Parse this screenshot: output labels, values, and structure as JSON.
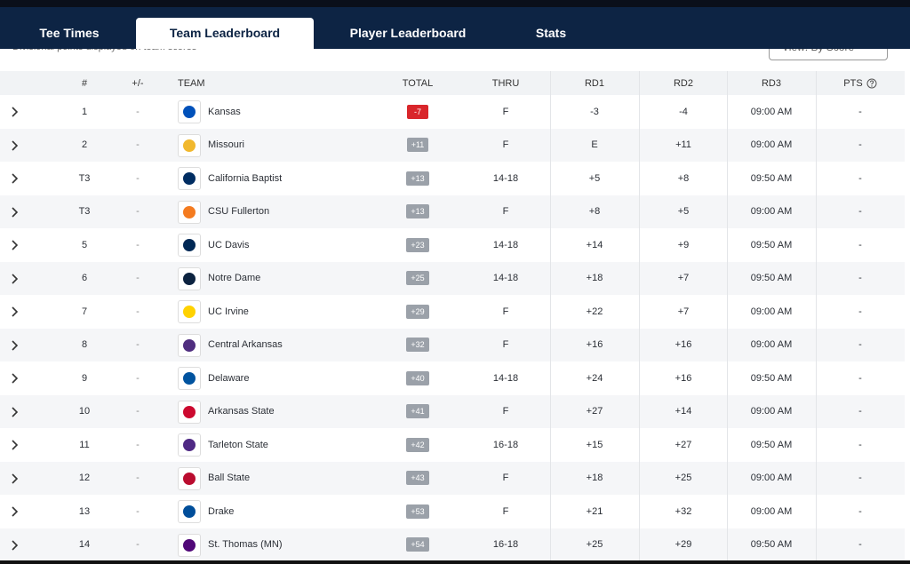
{
  "tabs": [
    "Tee Times",
    "Team Leaderboard",
    "Player Leaderboard",
    "Stats"
  ],
  "active_tab": 1,
  "note": "Divisional points displayed on team scores",
  "view_select": "View: By Score",
  "table": {
    "columns": [
      "#",
      "+/-",
      "TEAM",
      "TOTAL",
      "THRU",
      "RD1",
      "RD2",
      "RD3",
      "PTS"
    ],
    "rows": [
      [
        "1",
        "-",
        "Kansas",
        "-7",
        "F",
        "-3",
        "-4",
        "09:00 AM",
        "-"
      ],
      [
        "2",
        "-",
        "Missouri",
        "+11",
        "F",
        "E",
        "+11",
        "09:00 AM",
        "-"
      ],
      [
        "T3",
        "-",
        "California Baptist",
        "+13",
        "14-18",
        "+5",
        "+8",
        "09:50 AM",
        "-"
      ],
      [
        "T3",
        "-",
        "CSU Fullerton",
        "+13",
        "F",
        "+8",
        "+5",
        "09:00 AM",
        "-"
      ],
      [
        "5",
        "-",
        "UC Davis",
        "+23",
        "14-18",
        "+14",
        "+9",
        "09:50 AM",
        "-"
      ],
      [
        "6",
        "-",
        "Notre Dame",
        "+25",
        "14-18",
        "+18",
        "+7",
        "09:50 AM",
        "-"
      ],
      [
        "7",
        "-",
        "UC Irvine",
        "+29",
        "F",
        "+22",
        "+7",
        "09:00 AM",
        "-"
      ],
      [
        "8",
        "-",
        "Central Arkansas",
        "+32",
        "F",
        "+16",
        "+16",
        "09:00 AM",
        "-"
      ],
      [
        "9",
        "-",
        "Delaware",
        "+40",
        "14-18",
        "+24",
        "+16",
        "09:50 AM",
        "-"
      ],
      [
        "10",
        "-",
        "Arkansas State",
        "+41",
        "F",
        "+27",
        "+14",
        "09:00 AM",
        "-"
      ],
      [
        "11",
        "-",
        "Tarleton State",
        "+42",
        "16-18",
        "+15",
        "+27",
        "09:50 AM",
        "-"
      ],
      [
        "12",
        "-",
        "Ball State",
        "+43",
        "F",
        "+18",
        "+25",
        "09:00 AM",
        "-"
      ],
      [
        "13",
        "-",
        "Drake",
        "+53",
        "F",
        "+21",
        "+32",
        "09:00 AM",
        "-"
      ],
      [
        "14",
        "-",
        "St. Thomas (MN)",
        "+54",
        "16-18",
        "+25",
        "+29",
        "09:50 AM",
        "-"
      ]
    ]
  }
}
